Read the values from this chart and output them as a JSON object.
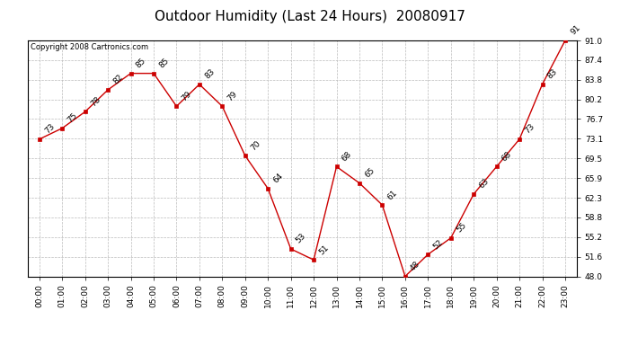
{
  "title": "Outdoor Humidity (Last 24 Hours)  20080917",
  "copyright": "Copyright 2008 Cartronics.com",
  "hours": [
    "00:00",
    "01:00",
    "02:00",
    "03:00",
    "04:00",
    "05:00",
    "06:00",
    "07:00",
    "08:00",
    "09:00",
    "10:00",
    "11:00",
    "12:00",
    "13:00",
    "14:00",
    "15:00",
    "16:00",
    "17:00",
    "18:00",
    "19:00",
    "20:00",
    "21:00",
    "22:00",
    "23:00"
  ],
  "values": [
    73,
    75,
    78,
    82,
    85,
    85,
    79,
    83,
    79,
    70,
    64,
    53,
    51,
    68,
    65,
    61,
    48,
    52,
    55,
    63,
    68,
    73,
    83,
    91
  ],
  "yticks": [
    48.0,
    51.6,
    55.2,
    58.8,
    62.3,
    65.9,
    69.5,
    73.1,
    76.7,
    80.2,
    83.8,
    87.4,
    91.0
  ],
  "line_color": "#cc0000",
  "marker_color": "#cc0000",
  "bg_color": "#ffffff",
  "grid_color": "#bbbbbb",
  "title_fontsize": 11,
  "label_fontsize": 6.5,
  "annotation_fontsize": 6.5,
  "copyright_fontsize": 6
}
